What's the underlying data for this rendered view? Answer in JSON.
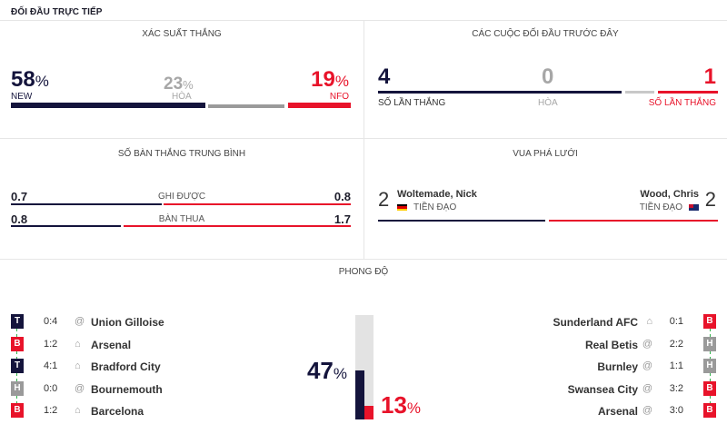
{
  "header": {
    "title": "ĐỐI ĐẦU TRỰC TIẾP"
  },
  "win_prob": {
    "caption": "XÁC SUẤT THẮNG",
    "home": {
      "value": "58",
      "unit": "%",
      "team": "NEW"
    },
    "draw": {
      "value": "23",
      "unit": "%",
      "label": "HÒA"
    },
    "away": {
      "value": "19",
      "unit": "%",
      "team": "NFO"
    },
    "fractions": {
      "home": 0.58,
      "draw": 0.23,
      "away": 0.19
    }
  },
  "previous": {
    "caption": "CÁC CUỘC ĐỐI ĐẦU TRƯỚC ĐÂY",
    "home": {
      "value": "4",
      "label": "SỐ LẦN THẮNG"
    },
    "draw": {
      "value": "0",
      "label": "HÒA"
    },
    "away": {
      "value": "1",
      "label": "SỐ LẦN THẮNG"
    }
  },
  "avg_goals": {
    "caption": "SỐ BÀN THẮNG TRUNG BÌNH",
    "scored": {
      "label": "GHI ĐƯỢC",
      "home": "0.7",
      "away": "0.8"
    },
    "conceded": {
      "label": "BÀN THUA",
      "home": "0.8",
      "away": "1.7"
    }
  },
  "top_scorer": {
    "caption": "VUA PHÁ LƯỚI",
    "home": {
      "goals": "2",
      "name": "Woltemade, Nick",
      "position": "TIỀN ĐẠO",
      "flag": "germany-flag"
    },
    "away": {
      "goals": "2",
      "name": "Wood, Chris",
      "position": "TIỀN ĐẠO",
      "flag": "new-zealand-flag"
    }
  },
  "form": {
    "caption": "PHONG ĐỘ",
    "home_pct": {
      "value": "47",
      "unit": "%"
    },
    "away_pct": {
      "value": "13",
      "unit": "%"
    },
    "fractions": {
      "home": 0.47,
      "away": 0.13
    },
    "home_matches": [
      {
        "result": "T",
        "score": "0:4",
        "venue": "@",
        "venue_icon": "away-at-icon",
        "opponent": "Union Gilloise"
      },
      {
        "result": "B",
        "score": "1:2",
        "venue": "⌂",
        "venue_icon": "home-icon",
        "opponent": "Arsenal"
      },
      {
        "result": "T",
        "score": "4:1",
        "venue": "⌂",
        "venue_icon": "home-icon",
        "opponent": "Bradford City"
      },
      {
        "result": "H",
        "score": "0:0",
        "venue": "@",
        "venue_icon": "away-at-icon",
        "opponent": "Bournemouth"
      },
      {
        "result": "B",
        "score": "1:2",
        "venue": "⌂",
        "venue_icon": "home-icon",
        "opponent": "Barcelona"
      }
    ],
    "away_matches": [
      {
        "result": "B",
        "score": "0:1",
        "venue": "⌂",
        "venue_icon": "home-icon",
        "opponent": "Sunderland AFC"
      },
      {
        "result": "H",
        "score": "2:2",
        "venue": "@",
        "venue_icon": "away-at-icon",
        "opponent": "Real Betis"
      },
      {
        "result": "H",
        "score": "1:1",
        "venue": "@",
        "venue_icon": "away-at-icon",
        "opponent": "Burnley"
      },
      {
        "result": "B",
        "score": "3:2",
        "venue": "@",
        "venue_icon": "away-at-icon",
        "opponent": "Swansea City"
      },
      {
        "result": "B",
        "score": "3:0",
        "venue": "@",
        "venue_icon": "away-at-icon",
        "opponent": "Arsenal"
      }
    ]
  },
  "colors": {
    "home": "#14143c",
    "away": "#e8132a",
    "draw": "#9a9a9a"
  }
}
